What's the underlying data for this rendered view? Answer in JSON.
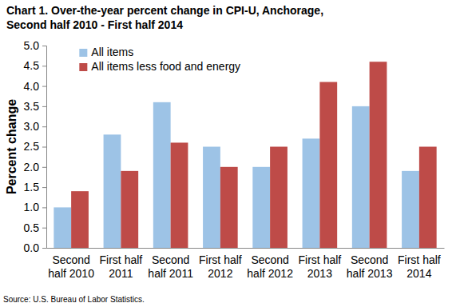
{
  "chart_data": {
    "type": "bar",
    "title": "Chart 1. Over-the-year percent change in CPI-U, Anchorage,",
    "subtitle": "Second half 2010 - First half 2014",
    "y_label": "Percent change",
    "source": "Source: U.S. Bureau of Labor Statistics.",
    "categories": [
      "Second half 2010",
      "First half 2011",
      "Second half 2011",
      "First half 2012",
      "Second half 2012",
      "First half 2013",
      "Second half 2013",
      "First half 2014"
    ],
    "series": [
      {
        "name": "All items",
        "color": "#9DC3E6",
        "values": [
          1.0,
          2.8,
          3.6,
          2.5,
          2.0,
          2.7,
          3.5,
          1.9
        ]
      },
      {
        "name": "All items less food and energy",
        "color": "#BE4B48",
        "values": [
          1.4,
          1.9,
          2.6,
          2.0,
          2.5,
          4.1,
          4.6,
          2.5
        ]
      }
    ],
    "ylim": [
      0,
      5
    ],
    "yticks": [
      {
        "value": 0,
        "label": "0.0"
      },
      0.5,
      {
        "value": 1,
        "label": "1.0"
      },
      1.5,
      {
        "value": 2,
        "label": "2.0"
      },
      2.5,
      {
        "value": 3,
        "label": "3.0"
      },
      3.5,
      {
        "value": 4,
        "label": "4.0"
      },
      4.5,
      {
        "value": 5,
        "label": "5.0"
      }
    ],
    "grid": false,
    "legend": "top-left"
  }
}
